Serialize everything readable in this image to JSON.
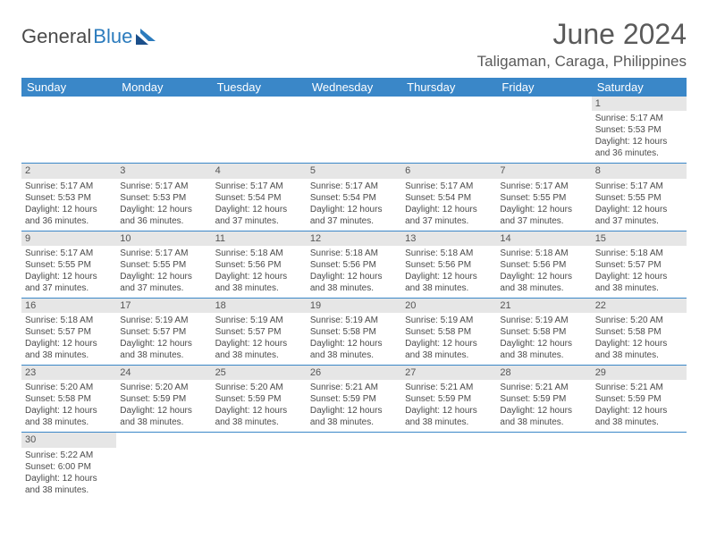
{
  "logo": {
    "text1": "General",
    "text2": "Blue"
  },
  "title": "June 2024",
  "location": "Taligaman, Caraga, Philippines",
  "colors": {
    "header_bg": "#3a87c8",
    "header_text": "#ffffff",
    "daynum_bg": "#e6e6e6",
    "row_divider": "#3a87c8",
    "text": "#4a4a4a",
    "logo_blue": "#2b7bbd"
  },
  "day_headers": [
    "Sunday",
    "Monday",
    "Tuesday",
    "Wednesday",
    "Thursday",
    "Friday",
    "Saturday"
  ],
  "weeks": [
    [
      {
        "n": "",
        "l": [
          "",
          "",
          "",
          ""
        ],
        "empty": true
      },
      {
        "n": "",
        "l": [
          "",
          "",
          "",
          ""
        ],
        "empty": true
      },
      {
        "n": "",
        "l": [
          "",
          "",
          "",
          ""
        ],
        "empty": true
      },
      {
        "n": "",
        "l": [
          "",
          "",
          "",
          ""
        ],
        "empty": true
      },
      {
        "n": "",
        "l": [
          "",
          "",
          "",
          ""
        ],
        "empty": true
      },
      {
        "n": "",
        "l": [
          "",
          "",
          "",
          ""
        ],
        "empty": true
      },
      {
        "n": "1",
        "l": [
          "Sunrise: 5:17 AM",
          "Sunset: 5:53 PM",
          "Daylight: 12 hours",
          "and 36 minutes."
        ]
      }
    ],
    [
      {
        "n": "2",
        "l": [
          "Sunrise: 5:17 AM",
          "Sunset: 5:53 PM",
          "Daylight: 12 hours",
          "and 36 minutes."
        ]
      },
      {
        "n": "3",
        "l": [
          "Sunrise: 5:17 AM",
          "Sunset: 5:53 PM",
          "Daylight: 12 hours",
          "and 36 minutes."
        ]
      },
      {
        "n": "4",
        "l": [
          "Sunrise: 5:17 AM",
          "Sunset: 5:54 PM",
          "Daylight: 12 hours",
          "and 37 minutes."
        ]
      },
      {
        "n": "5",
        "l": [
          "Sunrise: 5:17 AM",
          "Sunset: 5:54 PM",
          "Daylight: 12 hours",
          "and 37 minutes."
        ]
      },
      {
        "n": "6",
        "l": [
          "Sunrise: 5:17 AM",
          "Sunset: 5:54 PM",
          "Daylight: 12 hours",
          "and 37 minutes."
        ]
      },
      {
        "n": "7",
        "l": [
          "Sunrise: 5:17 AM",
          "Sunset: 5:55 PM",
          "Daylight: 12 hours",
          "and 37 minutes."
        ]
      },
      {
        "n": "8",
        "l": [
          "Sunrise: 5:17 AM",
          "Sunset: 5:55 PM",
          "Daylight: 12 hours",
          "and 37 minutes."
        ]
      }
    ],
    [
      {
        "n": "9",
        "l": [
          "Sunrise: 5:17 AM",
          "Sunset: 5:55 PM",
          "Daylight: 12 hours",
          "and 37 minutes."
        ]
      },
      {
        "n": "10",
        "l": [
          "Sunrise: 5:17 AM",
          "Sunset: 5:55 PM",
          "Daylight: 12 hours",
          "and 37 minutes."
        ]
      },
      {
        "n": "11",
        "l": [
          "Sunrise: 5:18 AM",
          "Sunset: 5:56 PM",
          "Daylight: 12 hours",
          "and 38 minutes."
        ]
      },
      {
        "n": "12",
        "l": [
          "Sunrise: 5:18 AM",
          "Sunset: 5:56 PM",
          "Daylight: 12 hours",
          "and 38 minutes."
        ]
      },
      {
        "n": "13",
        "l": [
          "Sunrise: 5:18 AM",
          "Sunset: 5:56 PM",
          "Daylight: 12 hours",
          "and 38 minutes."
        ]
      },
      {
        "n": "14",
        "l": [
          "Sunrise: 5:18 AM",
          "Sunset: 5:56 PM",
          "Daylight: 12 hours",
          "and 38 minutes."
        ]
      },
      {
        "n": "15",
        "l": [
          "Sunrise: 5:18 AM",
          "Sunset: 5:57 PM",
          "Daylight: 12 hours",
          "and 38 minutes."
        ]
      }
    ],
    [
      {
        "n": "16",
        "l": [
          "Sunrise: 5:18 AM",
          "Sunset: 5:57 PM",
          "Daylight: 12 hours",
          "and 38 minutes."
        ]
      },
      {
        "n": "17",
        "l": [
          "Sunrise: 5:19 AM",
          "Sunset: 5:57 PM",
          "Daylight: 12 hours",
          "and 38 minutes."
        ]
      },
      {
        "n": "18",
        "l": [
          "Sunrise: 5:19 AM",
          "Sunset: 5:57 PM",
          "Daylight: 12 hours",
          "and 38 minutes."
        ]
      },
      {
        "n": "19",
        "l": [
          "Sunrise: 5:19 AM",
          "Sunset: 5:58 PM",
          "Daylight: 12 hours",
          "and 38 minutes."
        ]
      },
      {
        "n": "20",
        "l": [
          "Sunrise: 5:19 AM",
          "Sunset: 5:58 PM",
          "Daylight: 12 hours",
          "and 38 minutes."
        ]
      },
      {
        "n": "21",
        "l": [
          "Sunrise: 5:19 AM",
          "Sunset: 5:58 PM",
          "Daylight: 12 hours",
          "and 38 minutes."
        ]
      },
      {
        "n": "22",
        "l": [
          "Sunrise: 5:20 AM",
          "Sunset: 5:58 PM",
          "Daylight: 12 hours",
          "and 38 minutes."
        ]
      }
    ],
    [
      {
        "n": "23",
        "l": [
          "Sunrise: 5:20 AM",
          "Sunset: 5:58 PM",
          "Daylight: 12 hours",
          "and 38 minutes."
        ]
      },
      {
        "n": "24",
        "l": [
          "Sunrise: 5:20 AM",
          "Sunset: 5:59 PM",
          "Daylight: 12 hours",
          "and 38 minutes."
        ]
      },
      {
        "n": "25",
        "l": [
          "Sunrise: 5:20 AM",
          "Sunset: 5:59 PM",
          "Daylight: 12 hours",
          "and 38 minutes."
        ]
      },
      {
        "n": "26",
        "l": [
          "Sunrise: 5:21 AM",
          "Sunset: 5:59 PM",
          "Daylight: 12 hours",
          "and 38 minutes."
        ]
      },
      {
        "n": "27",
        "l": [
          "Sunrise: 5:21 AM",
          "Sunset: 5:59 PM",
          "Daylight: 12 hours",
          "and 38 minutes."
        ]
      },
      {
        "n": "28",
        "l": [
          "Sunrise: 5:21 AM",
          "Sunset: 5:59 PM",
          "Daylight: 12 hours",
          "and 38 minutes."
        ]
      },
      {
        "n": "29",
        "l": [
          "Sunrise: 5:21 AM",
          "Sunset: 5:59 PM",
          "Daylight: 12 hours",
          "and 38 minutes."
        ]
      }
    ],
    [
      {
        "n": "30",
        "l": [
          "Sunrise: 5:22 AM",
          "Sunset: 6:00 PM",
          "Daylight: 12 hours",
          "and 38 minutes."
        ]
      },
      {
        "n": "",
        "l": [
          "",
          "",
          "",
          ""
        ],
        "empty": true
      },
      {
        "n": "",
        "l": [
          "",
          "",
          "",
          ""
        ],
        "empty": true
      },
      {
        "n": "",
        "l": [
          "",
          "",
          "",
          ""
        ],
        "empty": true
      },
      {
        "n": "",
        "l": [
          "",
          "",
          "",
          ""
        ],
        "empty": true
      },
      {
        "n": "",
        "l": [
          "",
          "",
          "",
          ""
        ],
        "empty": true
      },
      {
        "n": "",
        "l": [
          "",
          "",
          "",
          ""
        ],
        "empty": true
      }
    ]
  ]
}
